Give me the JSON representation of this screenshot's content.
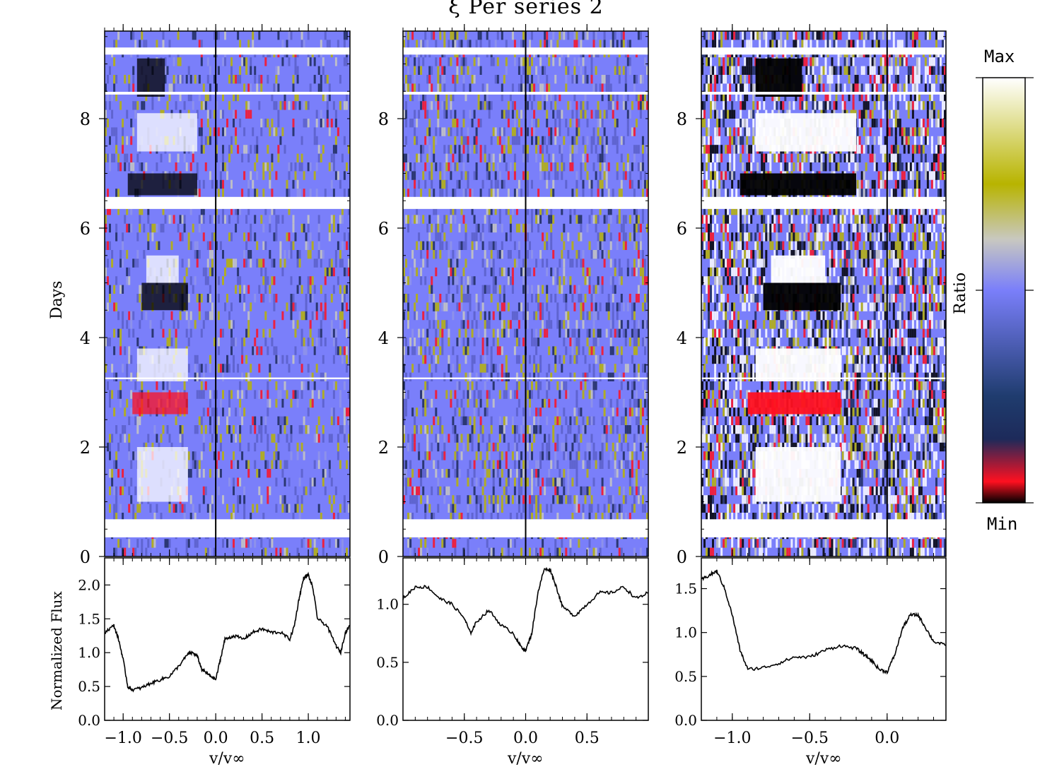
{
  "title": "ξ Per series 2",
  "colorbar": {
    "max_label": "Max",
    "min_label": "Min",
    "label": "Ratio",
    "stops": [
      "#000000",
      "#ff1020",
      "#1d2a5a",
      "#1f3c6e",
      "#7a7ffa",
      "#c8c8c0",
      "#b8b400",
      "#ffffff"
    ]
  },
  "y_axis_label": "Days",
  "flux_axis_label": "Normalized Flux",
  "x_axis_label": "v/v∞",
  "chart_data": [
    {
      "type": "heatmap",
      "panel": "left",
      "xlim": [
        -1.2,
        1.45
      ],
      "ylim": [
        0,
        9.6
      ],
      "yticks": [
        "0",
        "2",
        "4",
        "6",
        "8"
      ],
      "gaps_days": [
        [
          0.35,
          0.68
        ],
        [
          6.35,
          6.55
        ],
        [
          3.25,
          3.28
        ],
        [
          8.45,
          8.5
        ],
        [
          9.2,
          9.3
        ]
      ]
    },
    {
      "type": "heatmap",
      "panel": "middle",
      "xlim": [
        -1.0,
        1.0
      ],
      "ylim": [
        0,
        9.6
      ],
      "yticks": [
        "0",
        "2",
        "4",
        "6",
        "8"
      ]
    },
    {
      "type": "heatmap",
      "panel": "right",
      "xlim": [
        -1.2,
        0.38
      ],
      "ylim": [
        0,
        9.6
      ],
      "yticks": [
        "0",
        "2",
        "4",
        "6",
        "8"
      ]
    },
    {
      "type": "line",
      "panel": "left-flux",
      "xlim": [
        -1.2,
        1.45
      ],
      "ylim": [
        0.0,
        2.4
      ],
      "xticks": [
        "−1.0",
        "−0.5",
        "0.0",
        "0.5",
        "1.0"
      ],
      "yticks": [
        "0.0",
        "0.5",
        "1.0",
        "1.5",
        "2.0"
      ],
      "x": [
        -1.2,
        -1.1,
        -1.05,
        -1.0,
        -0.95,
        -0.9,
        -0.8,
        -0.7,
        -0.6,
        -0.5,
        -0.4,
        -0.3,
        -0.25,
        -0.2,
        -0.15,
        -0.1,
        -0.05,
        0.0,
        0.05,
        0.1,
        0.2,
        0.3,
        0.4,
        0.5,
        0.6,
        0.7,
        0.8,
        0.85,
        0.9,
        0.95,
        1.0,
        1.05,
        1.1,
        1.2,
        1.3,
        1.35,
        1.4,
        1.45
      ],
      "y": [
        1.3,
        1.4,
        1.2,
        0.9,
        0.5,
        0.45,
        0.48,
        0.55,
        0.6,
        0.65,
        0.8,
        0.98,
        1.0,
        0.95,
        0.75,
        0.7,
        0.65,
        0.6,
        0.9,
        1.2,
        1.25,
        1.2,
        1.3,
        1.35,
        1.3,
        1.3,
        1.2,
        1.4,
        1.8,
        2.1,
        2.15,
        1.95,
        1.5,
        1.4,
        1.1,
        1.0,
        1.3,
        1.4
      ]
    },
    {
      "type": "line",
      "panel": "middle-flux",
      "xlim": [
        -1.0,
        1.0
      ],
      "ylim": [
        0.0,
        1.4
      ],
      "xticks": [
        "−0.5",
        "0.0",
        "0.5"
      ],
      "yticks": [
        "0.0",
        "0.5",
        "1.0"
      ],
      "x": [
        -1.0,
        -0.9,
        -0.8,
        -0.7,
        -0.6,
        -0.5,
        -0.45,
        -0.4,
        -0.3,
        -0.2,
        -0.1,
        -0.05,
        0.0,
        0.05,
        0.1,
        0.15,
        0.2,
        0.25,
        0.3,
        0.4,
        0.5,
        0.6,
        0.7,
        0.8,
        0.9,
        1.0
      ],
      "y": [
        1.05,
        1.15,
        1.15,
        1.05,
        1.0,
        0.88,
        0.75,
        0.85,
        0.95,
        0.82,
        0.75,
        0.65,
        0.6,
        0.75,
        1.1,
        1.3,
        1.3,
        1.15,
        0.98,
        0.9,
        1.0,
        1.1,
        1.1,
        1.15,
        1.05,
        1.1
      ]
    },
    {
      "type": "line",
      "panel": "right-flux",
      "xlim": [
        -1.2,
        0.38
      ],
      "ylim": [
        0.0,
        1.85
      ],
      "xticks": [
        "−1.0",
        "−0.5",
        "0.0"
      ],
      "yticks": [
        "0.0",
        "0.5",
        "1.0",
        "1.5"
      ],
      "x": [
        -1.2,
        -1.15,
        -1.1,
        -1.05,
        -1.0,
        -0.95,
        -0.9,
        -0.8,
        -0.7,
        -0.6,
        -0.5,
        -0.4,
        -0.3,
        -0.2,
        -0.15,
        -0.1,
        -0.05,
        0.0,
        0.05,
        0.1,
        0.15,
        0.2,
        0.25,
        0.3,
        0.38
      ],
      "y": [
        1.6,
        1.65,
        1.7,
        1.5,
        1.2,
        0.8,
        0.58,
        0.6,
        0.65,
        0.72,
        0.72,
        0.8,
        0.85,
        0.82,
        0.75,
        0.68,
        0.58,
        0.55,
        0.75,
        1.05,
        1.2,
        1.2,
        1.05,
        0.9,
        0.85
      ]
    }
  ]
}
